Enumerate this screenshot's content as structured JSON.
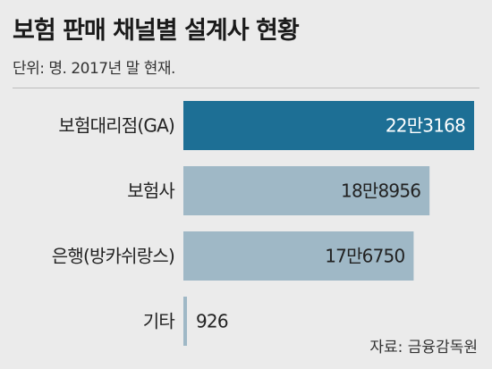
{
  "title": "보험 판매 채널별 설계사 현황",
  "subtitle": "단위: 명. 2017년 말 현재.",
  "source": "자료: 금융감독원",
  "colors": {
    "highlight_bar": "#1d6f95",
    "bar": "#9fb8c6",
    "highlight_text": "#ffffff",
    "text": "#222222"
  },
  "chart_data": {
    "type": "bar",
    "orientation": "horizontal",
    "title": "보험 판매 채널별 설계사 현황",
    "subtitle": "단위: 명. 2017년 말 현재.",
    "categories": [
      "보험대리점(GA)",
      "보험사",
      "은행(방카쉬랑스)",
      "기타"
    ],
    "values": [
      223168,
      188956,
      176750,
      926
    ],
    "value_labels": [
      "22만3168",
      "18만8956",
      "17만6750",
      "926"
    ],
    "highlight_index": 0,
    "xlim": [
      0,
      223168
    ],
    "grid": false,
    "legend": "none"
  }
}
